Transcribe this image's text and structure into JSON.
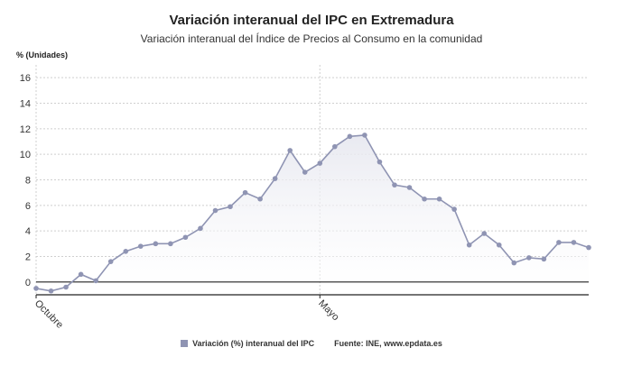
{
  "chart_data": {
    "type": "area",
    "title": "Variación interanual del IPC en Extremadura",
    "subtitle": "Variación interanual del Índice de Precios al Consumo en la comunidad",
    "ylabel": "% (Unidades)",
    "ylim": [
      -1,
      17
    ],
    "yticks": [
      0,
      2,
      4,
      6,
      8,
      10,
      12,
      14,
      16
    ],
    "xtick_labels": [
      {
        "index": 0,
        "label": "Octubre"
      },
      {
        "index": 19,
        "label": "Mayo"
      }
    ],
    "grid": true,
    "series": [
      {
        "name": "Variación (%) interanual del IPC",
        "values": [
          -0.5,
          -0.7,
          -0.4,
          0.6,
          0.1,
          1.6,
          2.4,
          2.8,
          3.0,
          3.0,
          3.5,
          4.2,
          5.6,
          5.9,
          7.0,
          6.5,
          8.1,
          10.3,
          8.6,
          9.3,
          10.6,
          11.4,
          11.5,
          9.4,
          7.6,
          7.4,
          6.5,
          6.5,
          5.7,
          2.9,
          3.8,
          2.9,
          1.5,
          1.9,
          1.8,
          3.1,
          3.1,
          2.7
        ],
        "color": "#8f94b3"
      }
    ],
    "legend_position": "bottom",
    "source": "Fuente: INE, www.epdata.es"
  }
}
